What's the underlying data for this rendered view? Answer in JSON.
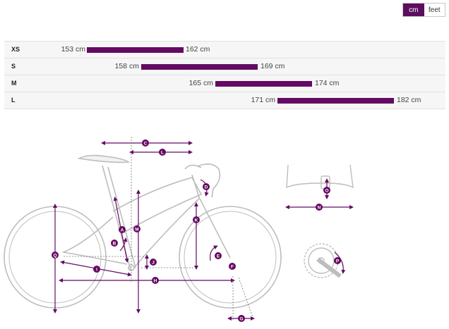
{
  "units": {
    "cm": "cm",
    "feet": "feet",
    "selected": "cm"
  },
  "sizes": [
    {
      "name": "XS",
      "min_label": "153 cm",
      "max_label": "162 cm",
      "min": 153,
      "max": 162
    },
    {
      "name": "S",
      "min_label": "158 cm",
      "max_label": "169 cm",
      "min": 158,
      "max": 169
    },
    {
      "name": "M",
      "min_label": "165 cm",
      "max_label": "174 cm",
      "min": 165,
      "max": 174
    },
    {
      "name": "L",
      "min_label": "171 cm",
      "max_label": "182 cm",
      "min": 171,
      "max": 182
    }
  ],
  "geometry_markers": [
    "A",
    "B",
    "C",
    "D",
    "E",
    "F",
    "G",
    "H",
    "I",
    "J",
    "K",
    "L",
    "M",
    "N",
    "O",
    "P",
    "Q"
  ],
  "colors": {
    "accent": "#640a63",
    "outline": "#bdbdbd",
    "row_bg": "#f6f6f6"
  }
}
